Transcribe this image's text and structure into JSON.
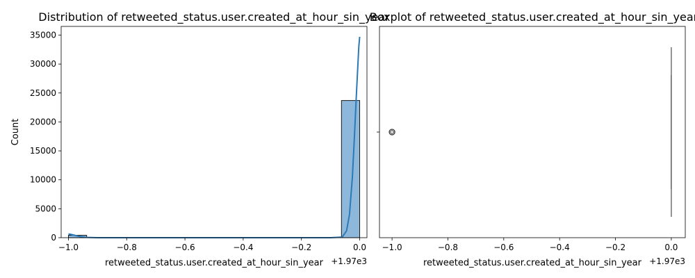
{
  "chart_data": [
    {
      "type": "histogram",
      "title": "Distribution of retweeted_status.user.created_at_hour_sin_year",
      "xlabel": "retweeted_status.user.created_at_hour_sin_year",
      "ylabel": "Count",
      "x_offset_label": "+1.97e3",
      "xlim": [
        -1.025,
        0.025
      ],
      "ylim": [
        0,
        36500
      ],
      "x_ticks": [
        -1.0,
        -0.8,
        -0.6,
        -0.4,
        -0.2,
        0.0
      ],
      "x_tick_labels": [
        "−1.0",
        "−0.8",
        "−0.6",
        "−0.4",
        "−0.2",
        "0.0"
      ],
      "y_ticks": [
        0,
        5000,
        10000,
        15000,
        20000,
        25000,
        30000,
        35000
      ],
      "y_tick_labels": [
        "0",
        "5000",
        "10000",
        "15000",
        "20000",
        "25000",
        "30000",
        "35000"
      ],
      "bins": [
        {
          "x0": -1.0,
          "x1": -0.9375,
          "count": 420
        },
        {
          "x0": -0.0625,
          "x1": 0.0,
          "count": 23700
        }
      ],
      "kde": [
        {
          "x": -1.0,
          "y": 650
        },
        {
          "x": -0.99,
          "y": 560
        },
        {
          "x": -0.975,
          "y": 380
        },
        {
          "x": -0.96,
          "y": 200
        },
        {
          "x": -0.94,
          "y": 60
        },
        {
          "x": -0.9,
          "y": 5
        },
        {
          "x": -0.85,
          "y": 0
        },
        {
          "x": -0.1,
          "y": 0
        },
        {
          "x": -0.06,
          "y": 100
        },
        {
          "x": -0.045,
          "y": 1200
        },
        {
          "x": -0.035,
          "y": 4000
        },
        {
          "x": -0.025,
          "y": 10500
        },
        {
          "x": -0.018,
          "y": 17500
        },
        {
          "x": -0.012,
          "y": 24000
        },
        {
          "x": -0.007,
          "y": 29000
        },
        {
          "x": -0.003,
          "y": 33000
        },
        {
          "x": 0.0,
          "y": 34700
        }
      ],
      "colors": {
        "bar_fill": "#8db8dc",
        "bar_edge": "#1a1a1a",
        "kde": "#2b79b5"
      }
    },
    {
      "type": "boxplot",
      "title": "Boxplot of retweeted_status.user.created_at_hour_sin_year",
      "xlabel": "retweeted_status.user.created_at_hour_sin_year",
      "x_offset_label": "+1.97e3",
      "xlim": [
        -1.045,
        0.05
      ],
      "x_ticks": [
        -1.0,
        -0.8,
        -0.6,
        -0.4,
        -0.2,
        0.0
      ],
      "x_tick_labels": [
        "−1.0",
        "−0.8",
        "−0.6",
        "−0.4",
        "−0.2",
        "0.0"
      ],
      "median": 0.0,
      "q1": 0.0,
      "q3": 0.0,
      "whisker_low": 0.0,
      "whisker_high": 0.0,
      "outliers": [
        -1.0
      ],
      "colors": {
        "line": "#4d4d4d",
        "box": "#3b75af"
      }
    }
  ]
}
